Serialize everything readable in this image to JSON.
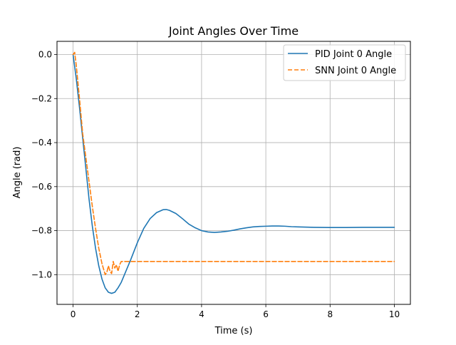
{
  "chart_data": {
    "type": "line",
    "title": "Joint Angles Over Time",
    "xlabel": "Time (s)",
    "ylabel": "Angle (rad)",
    "xlim": [
      -0.5,
      10.5
    ],
    "ylim": [
      -1.135,
      0.06
    ],
    "xticks": [
      0,
      2,
      4,
      6,
      8,
      10
    ],
    "yticks": [
      0.0,
      -0.2,
      -0.4,
      -0.6,
      -0.8,
      -1.0
    ],
    "xtick_labels": [
      "0",
      "2",
      "4",
      "6",
      "8",
      "10"
    ],
    "ytick_labels": [
      "0.0",
      "−0.2",
      "−0.4",
      "−0.6",
      "−0.8",
      "−1.0"
    ],
    "grid": true,
    "legend_position": "upper right",
    "series": [
      {
        "name": "PID Joint 0 Angle",
        "color": "#1f77b4",
        "style": "solid",
        "x": [
          0,
          0.1,
          0.2,
          0.3,
          0.4,
          0.5,
          0.6,
          0.7,
          0.8,
          0.9,
          1.0,
          1.1,
          1.2,
          1.3,
          1.4,
          1.5,
          1.6,
          1.8,
          2.0,
          2.2,
          2.4,
          2.6,
          2.8,
          2.9,
          3.0,
          3.2,
          3.4,
          3.6,
          3.8,
          4.0,
          4.2,
          4.4,
          4.6,
          4.8,
          5.0,
          5.2,
          5.4,
          5.6,
          5.8,
          6.0,
          6.2,
          6.4,
          6.6,
          6.8,
          7.0,
          7.5,
          8.0,
          8.5,
          9.0,
          9.5,
          10.0
        ],
        "y": [
          0.0,
          -0.11,
          -0.24,
          -0.38,
          -0.52,
          -0.66,
          -0.78,
          -0.88,
          -0.96,
          -1.02,
          -1.06,
          -1.08,
          -1.085,
          -1.08,
          -1.06,
          -1.035,
          -1.0,
          -0.93,
          -0.855,
          -0.79,
          -0.745,
          -0.718,
          -0.705,
          -0.704,
          -0.708,
          -0.722,
          -0.745,
          -0.77,
          -0.787,
          -0.8,
          -0.806,
          -0.808,
          -0.806,
          -0.803,
          -0.798,
          -0.792,
          -0.787,
          -0.783,
          -0.781,
          -0.78,
          -0.779,
          -0.779,
          -0.78,
          -0.782,
          -0.783,
          -0.785,
          -0.786,
          -0.786,
          -0.785,
          -0.785,
          -0.785
        ]
      },
      {
        "name": "SNN Joint 0 Angle",
        "color": "#ff7f0e",
        "style": "dashed",
        "x": [
          0,
          0.05,
          0.1,
          0.2,
          0.3,
          0.4,
          0.5,
          0.6,
          0.7,
          0.8,
          0.9,
          1.0,
          1.05,
          1.1,
          1.15,
          1.2,
          1.25,
          1.3,
          1.35,
          1.4,
          1.45,
          1.5,
          1.55,
          1.6,
          2.0,
          4.0,
          6.0,
          8.0,
          10.0
        ],
        "y": [
          0.0,
          0.01,
          -0.05,
          -0.2,
          -0.36,
          -0.47,
          -0.58,
          -0.69,
          -0.79,
          -0.88,
          -0.95,
          -1.0,
          -0.99,
          -0.96,
          -0.985,
          -0.995,
          -0.94,
          -0.97,
          -0.955,
          -0.985,
          -0.955,
          -0.94,
          -0.94,
          -0.94,
          -0.94,
          -0.94,
          -0.94,
          -0.94,
          -0.94
        ]
      }
    ]
  }
}
